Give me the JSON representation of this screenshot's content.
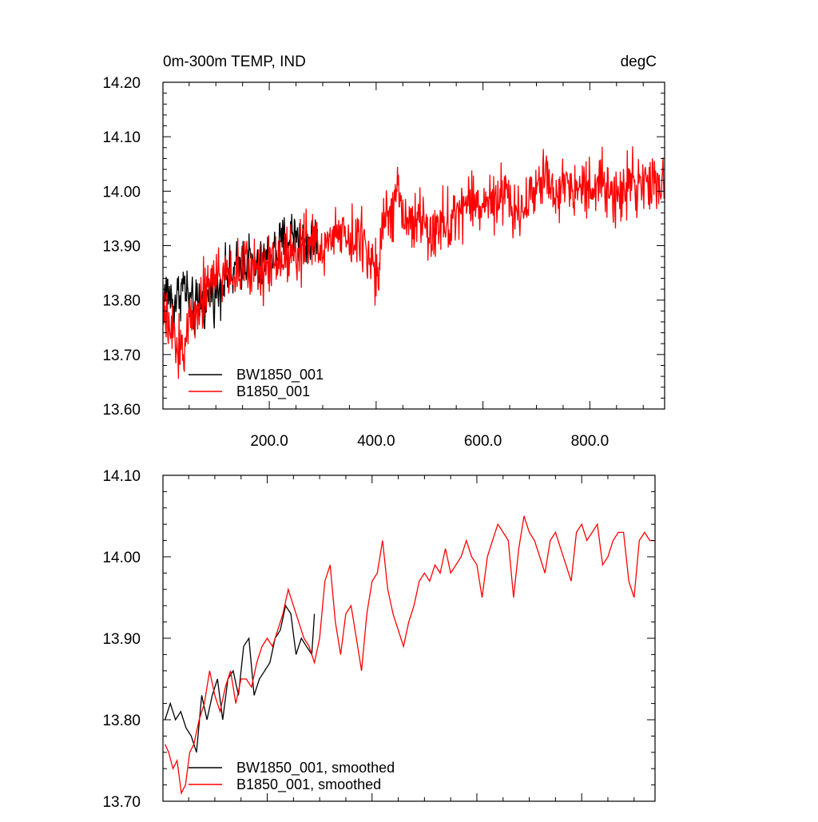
{
  "chart_data": [
    {
      "type": "line",
      "title_left": "0m-300m TEMP, IND",
      "title_right": "degC",
      "xlabel": "",
      "ylabel": "",
      "xlim": [
        1,
        940
      ],
      "ylim": [
        13.6,
        14.2
      ],
      "xticks": [
        200,
        400,
        600,
        800
      ],
      "xtick_labels": [
        "200.0",
        "400.0",
        "600.0",
        "800.0"
      ],
      "yticks": [
        13.6,
        13.7,
        13.8,
        13.9,
        14.0,
        14.1,
        14.2
      ],
      "ytick_labels": [
        "13.60",
        "13.70",
        "13.80",
        "13.90",
        "14.00",
        "14.10",
        "14.20"
      ],
      "legend": {
        "placement": "bottom-left",
        "entries": [
          "BW1850_001",
          "B1850_001"
        ]
      },
      "series": [
        {
          "name": "BW1850_001",
          "color": "#000000",
          "x": [
            1,
            10,
            20,
            30,
            40,
            50,
            60,
            70,
            80,
            90,
            100,
            110,
            120,
            130,
            140,
            150,
            160,
            170,
            180,
            190,
            200,
            210,
            220,
            230,
            240,
            250,
            260,
            270,
            280,
            290
          ],
          "values": [
            13.8,
            13.82,
            13.79,
            13.81,
            13.83,
            13.8,
            13.78,
            13.8,
            13.79,
            13.82,
            13.81,
            13.83,
            13.85,
            13.84,
            13.86,
            13.87,
            13.88,
            13.86,
            13.85,
            13.87,
            13.88,
            13.89,
            13.9,
            13.91,
            13.92,
            13.93,
            13.91,
            13.9,
            13.91,
            13.92
          ],
          "noise": 0.035
        },
        {
          "name": "B1850_001",
          "color": "#ff0000",
          "x": [
            1,
            10,
            20,
            30,
            40,
            50,
            60,
            70,
            80,
            90,
            100,
            120,
            140,
            160,
            180,
            200,
            220,
            240,
            260,
            280,
            300,
            320,
            340,
            360,
            380,
            400,
            420,
            440,
            460,
            480,
            500,
            520,
            540,
            560,
            580,
            600,
            620,
            640,
            660,
            680,
            700,
            720,
            740,
            760,
            780,
            800,
            820,
            840,
            860,
            880,
            900,
            920,
            940
          ],
          "values": [
            13.78,
            13.75,
            13.73,
            13.71,
            13.72,
            13.75,
            13.78,
            13.8,
            13.82,
            13.84,
            13.84,
            13.85,
            13.85,
            13.86,
            13.86,
            13.87,
            13.88,
            13.89,
            13.9,
            13.91,
            13.89,
            13.92,
            13.93,
            13.91,
            13.9,
            13.86,
            13.96,
            13.98,
            13.94,
            13.95,
            13.92,
            13.93,
            13.95,
            13.97,
            13.98,
            13.98,
            13.97,
            13.99,
            13.96,
            13.98,
            14.01,
            14.02,
            14.0,
            14.02,
            14.01,
            14.0,
            14.02,
            14.01,
            13.99,
            14.02,
            14.01,
            14.02,
            14.01
          ],
          "noise": 0.04
        }
      ]
    },
    {
      "type": "line",
      "title_left": "",
      "title_right": "",
      "xlabel": "",
      "ylabel": "",
      "xlim": [
        1,
        940
      ],
      "ylim": [
        13.7,
        14.1
      ],
      "yticks": [
        13.7,
        13.8,
        13.9,
        14.0,
        14.1
      ],
      "ytick_labels": [
        "13.70",
        "13.80",
        "13.90",
        "14.00",
        "14.10"
      ],
      "legend": {
        "placement": "bottom-left",
        "entries": [
          "BW1850_001, smoothed",
          "B1850_001, smoothed"
        ]
      },
      "series": [
        {
          "name": "BW1850_001, smoothed",
          "color": "#000000",
          "x": [
            5,
            15,
            25,
            35,
            45,
            55,
            65,
            75,
            85,
            95,
            105,
            115,
            125,
            135,
            145,
            155,
            165,
            175,
            185,
            195,
            205,
            215,
            225,
            235,
            245,
            255,
            265,
            275,
            285,
            290
          ],
          "values": [
            13.8,
            13.82,
            13.8,
            13.81,
            13.79,
            13.78,
            13.76,
            13.83,
            13.8,
            13.83,
            13.85,
            13.8,
            13.85,
            13.86,
            13.83,
            13.89,
            13.9,
            13.83,
            13.85,
            13.86,
            13.87,
            13.9,
            13.91,
            13.94,
            13.93,
            13.88,
            13.9,
            13.89,
            13.88,
            13.93
          ]
        },
        {
          "name": "B1850_001, smoothed",
          "color": "#ff0000",
          "x": [
            5,
            12,
            20,
            28,
            36,
            44,
            52,
            60,
            70,
            80,
            90,
            100,
            110,
            120,
            130,
            140,
            150,
            160,
            170,
            180,
            190,
            200,
            210,
            220,
            230,
            240,
            250,
            260,
            270,
            280,
            290,
            300,
            310,
            320,
            330,
            340,
            350,
            360,
            370,
            380,
            390,
            400,
            410,
            420,
            430,
            440,
            450,
            460,
            470,
            480,
            490,
            500,
            510,
            520,
            530,
            540,
            550,
            560,
            570,
            580,
            590,
            600,
            610,
            620,
            630,
            640,
            650,
            660,
            670,
            680,
            690,
            700,
            710,
            720,
            730,
            740,
            750,
            760,
            770,
            780,
            790,
            800,
            810,
            820,
            830,
            840,
            850,
            860,
            870,
            880,
            890,
            900,
            910,
            920,
            930,
            940
          ],
          "values": [
            13.77,
            13.76,
            13.74,
            13.75,
            13.71,
            13.72,
            13.76,
            13.77,
            13.8,
            13.82,
            13.86,
            13.83,
            13.81,
            13.84,
            13.86,
            13.82,
            13.85,
            13.85,
            13.84,
            13.87,
            13.89,
            13.9,
            13.89,
            13.91,
            13.93,
            13.96,
            13.94,
            13.92,
            13.9,
            13.89,
            13.87,
            13.9,
            13.97,
            13.99,
            13.92,
            13.88,
            13.93,
            13.94,
            13.9,
            13.86,
            13.93,
            13.97,
            13.98,
            14.02,
            13.96,
            13.93,
            13.91,
            13.89,
            13.92,
            13.94,
            13.97,
            13.98,
            13.97,
            13.99,
            13.98,
            14.01,
            13.98,
            13.99,
            14.0,
            14.02,
            14.0,
            13.99,
            13.95,
            14.0,
            14.02,
            14.04,
            14.03,
            14.02,
            13.95,
            14.01,
            14.05,
            14.03,
            14.02,
            14.0,
            13.98,
            14.02,
            14.03,
            14.01,
            13.99,
            13.97,
            14.03,
            14.04,
            14.02,
            14.03,
            14.04,
            13.99,
            14.0,
            14.02,
            14.03,
            14.03,
            13.97,
            13.95,
            14.02,
            14.03,
            14.02,
            14.02
          ]
        }
      ]
    }
  ]
}
